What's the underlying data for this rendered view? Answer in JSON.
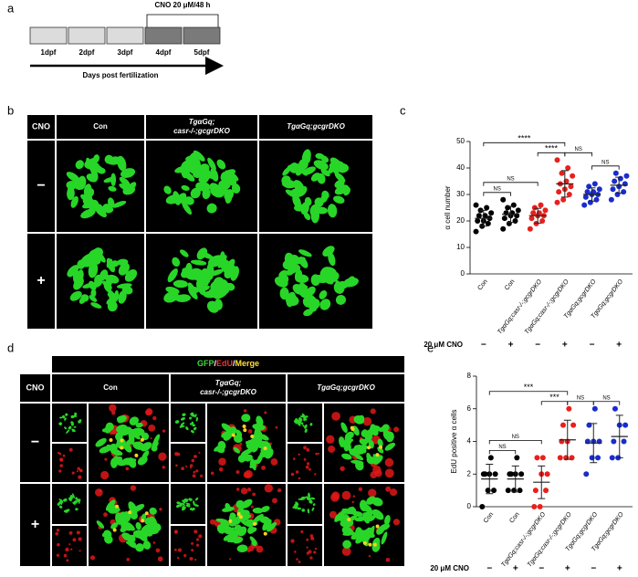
{
  "panel_labels": [
    "a",
    "b",
    "c",
    "d",
    "e"
  ],
  "timeline": {
    "days": [
      "1dpf",
      "2dpf",
      "3dpf",
      "4dpf",
      "5dpf"
    ],
    "treated": [
      false,
      false,
      false,
      true,
      true
    ],
    "treatment": "CNO 20 μM/48 h",
    "axis_label": "Days post fertilization"
  },
  "panel_b": {
    "row_header": "CNO",
    "columns": [
      [
        "Con"
      ],
      [
        "TgαGq;",
        "casr-/-;gcgrDKO"
      ],
      [
        "TgαGq;gcgrDKO"
      ]
    ],
    "rows": [
      "−",
      "+"
    ]
  },
  "panel_d": {
    "stains": [
      "GFP",
      "EdU",
      "Merge"
    ],
    "stain_colors": [
      "#3ddc3d",
      "#ff3030",
      "#ffe030"
    ],
    "separator": "/",
    "row_header": "CNO",
    "columns": [
      [
        "Con"
      ],
      [
        "TgαGq;",
        "casr-/-;gcgrDKO"
      ],
      [
        "TgαGq;gcgrDKO"
      ]
    ],
    "rows": [
      "−",
      "+"
    ]
  },
  "chart_data": [
    {
      "type": "scatter",
      "ylabel": "α cell number",
      "categories": [
        "Con",
        "Con",
        "TgαGq;casr-/-;gcgrDKO",
        "TgαGq;casr-/-;gcgrDKO",
        "TgαGq;gcgrDKO",
        "TgαGq;gcgrDKO"
      ],
      "colors": [
        "#000000",
        "#000000",
        "#e8201c",
        "#e8201c",
        "#1a2ccc",
        "#1a2ccc"
      ],
      "values": [
        [
          16,
          18,
          19,
          20,
          20,
          21,
          22,
          22,
          23,
          24,
          25,
          26
        ],
        [
          17,
          19,
          20,
          21,
          22,
          22,
          23,
          23,
          24,
          25,
          26,
          28
        ],
        [
          17,
          19,
          20,
          21,
          22,
          22,
          23,
          23,
          24,
          25,
          26
        ],
        [
          27,
          28,
          30,
          31,
          32,
          33,
          34,
          35,
          37,
          38,
          40,
          43
        ],
        [
          26,
          27,
          28,
          29,
          30,
          30,
          31,
          31,
          32,
          33,
          34
        ],
        [
          28,
          30,
          31,
          32,
          33,
          34,
          35,
          36,
          37,
          38
        ]
      ],
      "means": [
        21,
        22.5,
        22,
        34,
        30,
        33.5
      ],
      "sds": [
        3,
        3,
        2.8,
        5,
        2.5,
        3
      ],
      "ylim": [
        0,
        50
      ],
      "yticks": [
        0,
        10,
        20,
        30,
        40,
        50
      ],
      "brackets": [
        {
          "from": 0,
          "to": 1,
          "label": "NS"
        },
        {
          "from": 0,
          "to": 2,
          "label": "NS"
        },
        {
          "from": 2,
          "to": 3,
          "label": "****"
        },
        {
          "from": 3,
          "to": 4,
          "label": "NS"
        },
        {
          "from": 4,
          "to": 5,
          "label": "NS"
        },
        {
          "from": 0,
          "to": 3,
          "label": "****"
        }
      ],
      "cno_label": "20 μM CNO",
      "cno": [
        "−",
        "+",
        "−",
        "+",
        "−",
        "+"
      ]
    },
    {
      "type": "scatter",
      "ylabel": "EdU positive α cells",
      "categories": [
        "Con",
        "Con",
        "TgαGq;casr-/-;gcgrDKO",
        "TgαGq;casr-/-;gcgrDKO",
        "TgαGq;gcgrDKO",
        "TgαGq;gcgrDKO"
      ],
      "colors": [
        "#000000",
        "#000000",
        "#e8201c",
        "#e8201c",
        "#1a2ccc",
        "#1a2ccc"
      ],
      "values": [
        [
          0,
          1,
          1,
          2,
          2,
          2,
          2,
          3
        ],
        [
          1,
          1,
          1,
          2,
          2,
          2,
          2,
          3
        ],
        [
          0,
          0,
          1,
          1,
          2,
          2,
          3,
          3
        ],
        [
          3,
          3,
          3,
          4,
          4,
          5,
          5,
          6
        ],
        [
          2,
          3,
          3,
          4,
          4,
          4,
          5,
          6
        ],
        [
          3,
          3,
          4,
          4,
          5,
          5,
          6
        ]
      ],
      "means": [
        1.7,
        1.7,
        1.5,
        4.1,
        3.9,
        4.3
      ],
      "sds": [
        0.9,
        0.8,
        1.0,
        1.2,
        1.2,
        1.3
      ],
      "ylim": [
        0,
        8
      ],
      "yticks": [
        0,
        2,
        4,
        6,
        8
      ],
      "brackets": [
        {
          "from": 0,
          "to": 1,
          "label": "NS"
        },
        {
          "from": 0,
          "to": 2,
          "label": "NS"
        },
        {
          "from": 2,
          "to": 3,
          "label": "***"
        },
        {
          "from": 3,
          "to": 4,
          "label": "NS"
        },
        {
          "from": 4,
          "to": 5,
          "label": "NS"
        },
        {
          "from": 0,
          "to": 3,
          "label": "***"
        }
      ],
      "cno_label": "20 μM CNO",
      "cno": [
        "−",
        "+",
        "−",
        "+",
        "−",
        "+"
      ]
    }
  ]
}
